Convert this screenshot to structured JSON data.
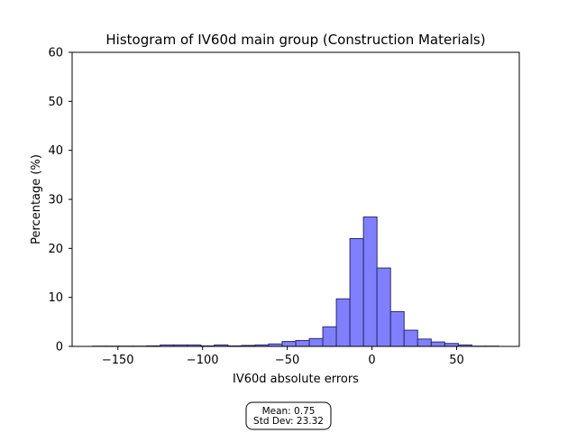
{
  "chart_data": {
    "type": "bar",
    "title": "Histogram of IV60d main group (Construction Materials)",
    "xlabel": "IV60d absolute errors",
    "ylabel": "Percentage (%)",
    "xlim": [
      -177,
      87
    ],
    "ylim": [
      0,
      60
    ],
    "xticks": [
      -150,
      -100,
      -50,
      0,
      50
    ],
    "xtick_labels": [
      "−150",
      "−100",
      "−50",
      "0",
      "50"
    ],
    "yticks": [
      0,
      10,
      20,
      30,
      40,
      50,
      60
    ],
    "ytick_labels": [
      "0",
      "10",
      "20",
      "30",
      "40",
      "50",
      "60"
    ],
    "grid": false,
    "bar_fill": "#8080ff",
    "bar_edge": "#2a2a6e",
    "bins": [
      {
        "x0": -165.0,
        "x1": -157.0,
        "value": 0.05
      },
      {
        "x0": -157.0,
        "x1": -149.0,
        "value": 0.05
      },
      {
        "x0": -149.0,
        "x1": -141.0,
        "value": 0.05
      },
      {
        "x0": -141.0,
        "x1": -133.0,
        "value": 0.05
      },
      {
        "x0": -133.0,
        "x1": -125.0,
        "value": 0.1
      },
      {
        "x0": -125.0,
        "x1": -117.0,
        "value": 0.3
      },
      {
        "x0": -117.0,
        "x1": -109.0,
        "value": 0.3
      },
      {
        "x0": -109.0,
        "x1": -101.0,
        "value": 0.3
      },
      {
        "x0": -101.0,
        "x1": -93.0,
        "value": 0.1
      },
      {
        "x0": -93.0,
        "x1": -85.0,
        "value": 0.3
      },
      {
        "x0": -85.0,
        "x1": -77.0,
        "value": 0.1
      },
      {
        "x0": -77.0,
        "x1": -69.0,
        "value": 0.2
      },
      {
        "x0": -69.0,
        "x1": -61.0,
        "value": 0.3
      },
      {
        "x0": -61.0,
        "x1": -53.0,
        "value": 0.5
      },
      {
        "x0": -53.0,
        "x1": -45.0,
        "value": 1.0
      },
      {
        "x0": -45.0,
        "x1": -37.0,
        "value": 1.2
      },
      {
        "x0": -37.0,
        "x1": -29.0,
        "value": 1.6
      },
      {
        "x0": -29.0,
        "x1": -21.0,
        "value": 4.0
      },
      {
        "x0": -21.0,
        "x1": -13.0,
        "value": 9.7
      },
      {
        "x0": -13.0,
        "x1": -5.0,
        "value": 22.0
      },
      {
        "x0": -5.0,
        "x1": 3.0,
        "value": 26.4
      },
      {
        "x0": 3.0,
        "x1": 11.0,
        "value": 16.0
      },
      {
        "x0": 11.0,
        "x1": 19.0,
        "value": 7.1
      },
      {
        "x0": 19.0,
        "x1": 27.0,
        "value": 3.3
      },
      {
        "x0": 27.0,
        "x1": 35.0,
        "value": 1.5
      },
      {
        "x0": 35.0,
        "x1": 43.0,
        "value": 0.9
      },
      {
        "x0": 43.0,
        "x1": 51.0,
        "value": 0.6
      },
      {
        "x0": 51.0,
        "x1": 59.0,
        "value": 0.3
      },
      {
        "x0": 59.0,
        "x1": 67.0,
        "value": 0.05
      },
      {
        "x0": 67.0,
        "x1": 75.0,
        "value": 0.05
      }
    ],
    "stats_box": {
      "line1": "Mean: 0.75",
      "line2": "Std Dev: 23.32"
    }
  }
}
